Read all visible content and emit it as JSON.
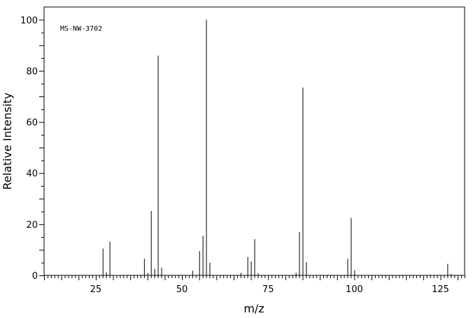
{
  "chart_data": {
    "type": "bar",
    "annotation": "MS-NW-3702",
    "xlabel": "m/z",
    "ylabel": "Relative Intensity",
    "xlim": [
      10,
      132
    ],
    "ylim": [
      0,
      105
    ],
    "x_ticks": [
      25,
      50,
      75,
      100,
      125
    ],
    "y_ticks": [
      0,
      20,
      40,
      60,
      80,
      100
    ],
    "grid": false,
    "peaks": [
      {
        "mz": 27,
        "intensity": 10.5
      },
      {
        "mz": 28,
        "intensity": 1.2
      },
      {
        "mz": 29,
        "intensity": 13.2
      },
      {
        "mz": 39,
        "intensity": 6.5
      },
      {
        "mz": 40,
        "intensity": 1.0
      },
      {
        "mz": 41,
        "intensity": 25.2
      },
      {
        "mz": 42,
        "intensity": 2.5
      },
      {
        "mz": 43,
        "intensity": 86.0
      },
      {
        "mz": 44,
        "intensity": 3.0
      },
      {
        "mz": 53,
        "intensity": 1.8
      },
      {
        "mz": 55,
        "intensity": 9.5
      },
      {
        "mz": 56,
        "intensity": 15.5
      },
      {
        "mz": 57,
        "intensity": 100.0
      },
      {
        "mz": 58,
        "intensity": 5.0
      },
      {
        "mz": 67,
        "intensity": 1.0
      },
      {
        "mz": 69,
        "intensity": 7.2
      },
      {
        "mz": 70,
        "intensity": 5.5
      },
      {
        "mz": 71,
        "intensity": 14.2
      },
      {
        "mz": 72,
        "intensity": 0.8
      },
      {
        "mz": 83,
        "intensity": 1.0
      },
      {
        "mz": 84,
        "intensity": 17.0
      },
      {
        "mz": 85,
        "intensity": 73.5
      },
      {
        "mz": 86,
        "intensity": 5.2
      },
      {
        "mz": 98,
        "intensity": 6.5
      },
      {
        "mz": 99,
        "intensity": 22.5
      },
      {
        "mz": 100,
        "intensity": 2.0
      },
      {
        "mz": 127,
        "intensity": 4.5
      },
      {
        "mz": 128,
        "intensity": 0.5
      }
    ]
  }
}
